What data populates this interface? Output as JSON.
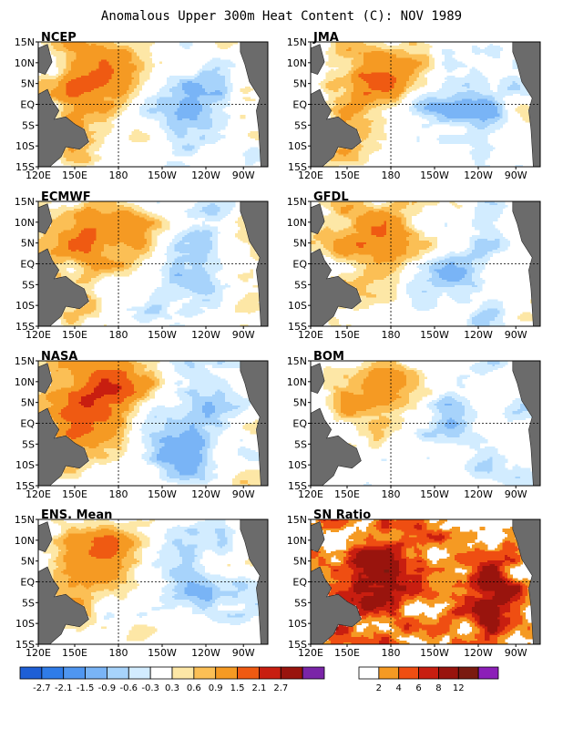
{
  "title": "Anomalous Upper 300m Heat Content (C): NOV 1989",
  "colors": {
    "land": "#6b6b6b",
    "anomaly": [
      "#1e5fd6",
      "#2f7ce8",
      "#4f96f0",
      "#79b4f6",
      "#a7d3fb",
      "#d2ecff",
      "#ffffff",
      "#fde7a6",
      "#fbbf55",
      "#f59a23",
      "#ef5a12",
      "#c81e10",
      "#99140d",
      "#7a25a8"
    ],
    "sn": [
      "#ffffff",
      "#f59a23",
      "#ef4e12",
      "#c81e10",
      "#99140d",
      "#7a1a10",
      "#8c1fb8"
    ]
  },
  "chart_data": [
    {
      "type": "heatmap",
      "title": "NCEP",
      "xticks": [
        "120E",
        "150E",
        "180",
        "150W",
        "120W",
        "90W"
      ],
      "yticks": [
        "15N",
        "10N",
        "5N",
        "EQ",
        "5S",
        "10S",
        "15S"
      ]
    },
    {
      "type": "heatmap",
      "title": "JMA",
      "xticks": [
        "120E",
        "150E",
        "180",
        "150W",
        "120W",
        "90W"
      ],
      "yticks": [
        "15N",
        "10N",
        "5N",
        "EQ",
        "5S",
        "10S",
        "15S"
      ]
    },
    {
      "type": "heatmap",
      "title": "ECMWF",
      "xticks": [
        "120E",
        "150E",
        "180",
        "150W",
        "120W",
        "90W"
      ],
      "yticks": [
        "15N",
        "10N",
        "5N",
        "EQ",
        "5S",
        "10S",
        "15S"
      ]
    },
    {
      "type": "heatmap",
      "title": "GFDL",
      "xticks": [
        "120E",
        "150E",
        "180",
        "150W",
        "120W",
        "90W"
      ],
      "yticks": [
        "15N",
        "10N",
        "5N",
        "EQ",
        "5S",
        "10S",
        "15S"
      ]
    },
    {
      "type": "heatmap",
      "title": "NASA",
      "xticks": [
        "120E",
        "150E",
        "180",
        "150W",
        "120W",
        "90W"
      ],
      "yticks": [
        "15N",
        "10N",
        "5N",
        "EQ",
        "5S",
        "10S",
        "15S"
      ]
    },
    {
      "type": "heatmap",
      "title": "BOM",
      "xticks": [
        "120E",
        "150E",
        "180",
        "150W",
        "120W",
        "90W"
      ],
      "yticks": [
        "15N",
        "10N",
        "5N",
        "EQ",
        "5S",
        "10S",
        "15S"
      ]
    },
    {
      "type": "heatmap",
      "title": "ENS. Mean",
      "xticks": [
        "120E",
        "150E",
        "180",
        "150W",
        "120W",
        "90W"
      ],
      "yticks": [
        "15N",
        "10N",
        "5N",
        "EQ",
        "5S",
        "10S",
        "15S"
      ]
    },
    {
      "type": "heatmap",
      "title": "SN Ratio",
      "xticks": [
        "120E",
        "150E",
        "180",
        "150W",
        "120W",
        "90W"
      ],
      "yticks": [
        "15N",
        "10N",
        "5N",
        "EQ",
        "5S",
        "10S",
        "15S"
      ]
    }
  ],
  "colorbar_anomaly": [
    "-2.7",
    "-2.1",
    "-1.5",
    "-0.9",
    "-0.6",
    "-0.3",
    "0.3",
    "0.6",
    "0.9",
    "1.5",
    "2.1",
    "2.7"
  ],
  "colorbar_sn": [
    "2",
    "4",
    "6",
    "8",
    "12"
  ]
}
